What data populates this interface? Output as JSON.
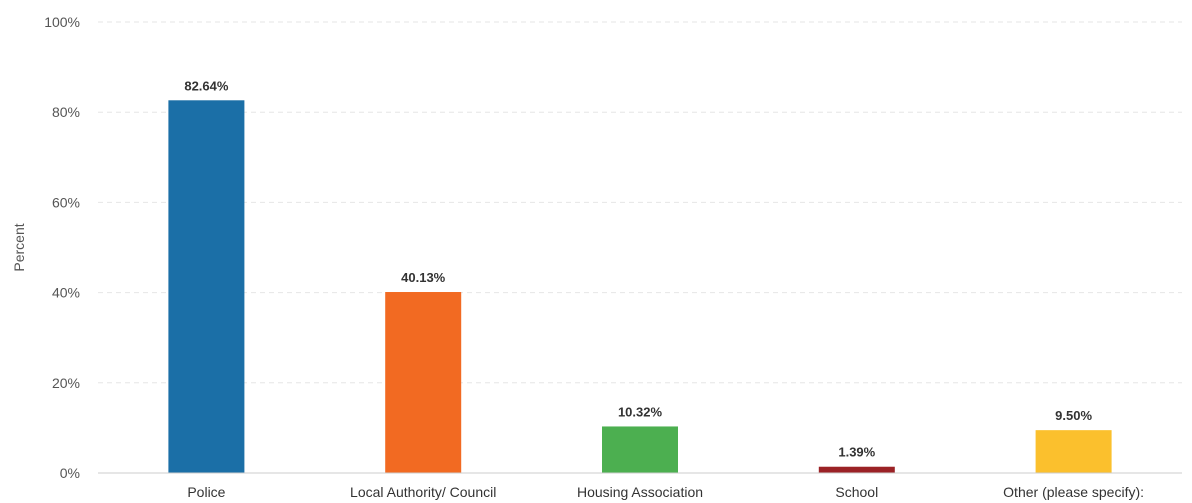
{
  "chart_data": {
    "type": "bar",
    "title": "",
    "xlabel": "",
    "ylabel": "Percent",
    "ylim": [
      0,
      100
    ],
    "yticks": [
      "0%",
      "20%",
      "40%",
      "60%",
      "80%",
      "100%"
    ],
    "grid": true,
    "legend": "none",
    "categories": [
      "Police",
      "Local Authority/ Council",
      "Housing Association",
      "School",
      "Other (please specify):"
    ],
    "values": [
      82.64,
      40.13,
      10.32,
      1.39,
      9.5
    ],
    "value_labels": [
      "82.64%",
      "40.13%",
      "10.32%",
      "1.39%",
      "9.50%"
    ],
    "colors": [
      "#1b6fa7",
      "#f26a22",
      "#4caf50",
      "#9b2226",
      "#fbc02d"
    ]
  }
}
